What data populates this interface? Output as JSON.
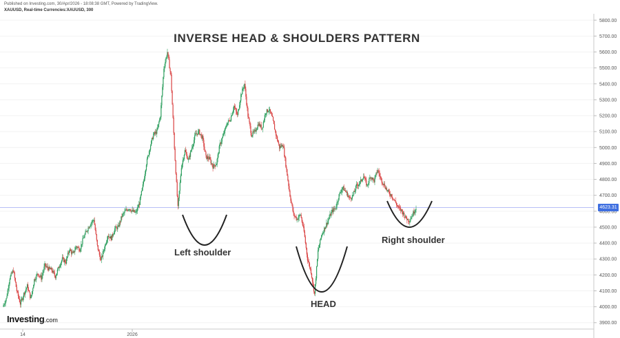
{
  "header": {
    "published": "Published on Investing.com, 30/Apr/2026 - 18:08:38 GMT, Powered by TradingView.",
    "symbol": "XAUUSD, Real-time Currencies:XAUUSD, 300"
  },
  "logo": {
    "brand": "Investing",
    "suffix": ".com"
  },
  "chart_data": {
    "type": "line",
    "title": "INVERSE HEAD & SHOULDERS PATTERN",
    "series": [
      {
        "values": [
          4000,
          4050,
          4180,
          4230,
          4100,
          4020,
          4080,
          4130,
          4050,
          4170,
          4210,
          4180,
          4260,
          4240,
          4230,
          4190,
          4250,
          4300,
          4280,
          4360,
          4330,
          4380,
          4360,
          4430,
          4480,
          4520,
          4550,
          4380,
          4290,
          4370,
          4450,
          4430,
          4490,
          4500,
          4570,
          4600,
          4620,
          4600,
          4590,
          4650,
          4760,
          4900,
          5000,
          5080,
          5100,
          5200,
          5500,
          5600,
          5450,
          5000,
          4620,
          4880,
          4980,
          4920,
          5000,
          5080,
          5100,
          5060,
          4940,
          4930,
          4880,
          4900,
          5020,
          5080,
          5150,
          5180,
          5260,
          5200,
          5330,
          5400,
          5200,
          5080,
          5100,
          5150,
          5120,
          5220,
          5240,
          5180,
          5080,
          5000,
          5020,
          4860,
          4700,
          4580,
          4550,
          4580,
          4470,
          4300,
          4220,
          4080,
          4350,
          4450,
          4500,
          4550,
          4600,
          4620,
          4700,
          4750,
          4720,
          4680,
          4700,
          4760,
          4780,
          4820,
          4760,
          4820,
          4790,
          4860,
          4800,
          4760,
          4720,
          4700,
          4660,
          4620,
          4600,
          4560,
          4540,
          4580,
          4623.31
        ]
      }
    ],
    "ylim": [
      3860,
      5840
    ],
    "yticks": [
      "5800.00",
      "5700.00",
      "5600.00",
      "5500.00",
      "5400.00",
      "5300.00",
      "5200.00",
      "5100.00",
      "5000.00",
      "4900.00",
      "4800.00",
      "4700.00",
      "4600.00",
      "4500.00",
      "4400.00",
      "4300.00",
      "4200.00",
      "4100.00",
      "4000.00",
      "3900.00"
    ],
    "xticks": [
      "14",
      "2026"
    ],
    "last_price": "4623.31",
    "annotations": [
      {
        "label": "Left shoulder"
      },
      {
        "label": "HEAD"
      },
      {
        "label": "Right shoulder"
      }
    ]
  }
}
